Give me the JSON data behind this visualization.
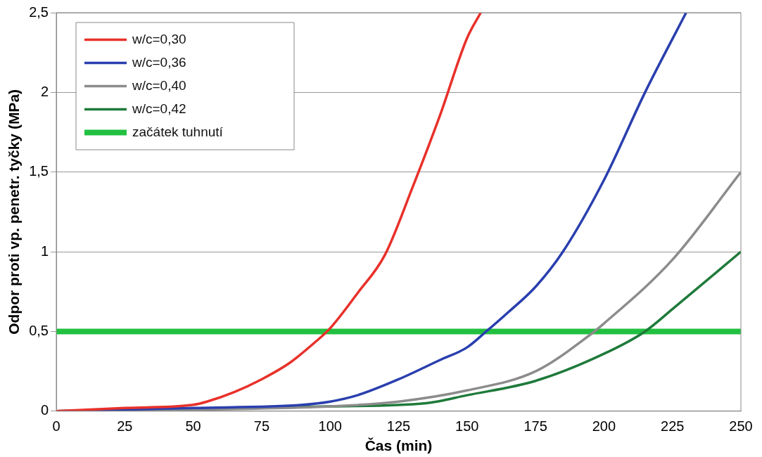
{
  "chart_data": {
    "type": "line",
    "xlabel": "Čas (min)",
    "ylabel": "Odpor proti vp. penetr. tyčky (MPa)",
    "series": [
      {
        "name": "w/c=0,30",
        "color": "#e8312a",
        "x": [
          0,
          25,
          50,
          55,
          65,
          75,
          85,
          95,
          100,
          110,
          120,
          130,
          140,
          150,
          155
        ],
        "values": [
          0,
          0.02,
          0.04,
          0.06,
          0.12,
          0.2,
          0.3,
          0.44,
          0.52,
          0.74,
          0.98,
          1.4,
          1.85,
          2.34,
          2.5
        ]
      },
      {
        "name": "w/c=0,36",
        "color": "#2a3fae",
        "x": [
          0,
          50,
          90,
          100,
          110,
          125,
          140,
          150,
          157,
          165,
          175,
          185,
          200,
          215,
          230
        ],
        "values": [
          0,
          0.02,
          0.04,
          0.06,
          0.1,
          0.2,
          0.32,
          0.4,
          0.5,
          0.62,
          0.78,
          1.0,
          1.45,
          2.0,
          2.5
        ]
      },
      {
        "name": "w/c=0,40",
        "color": "#8c8c8c",
        "x": [
          0,
          100,
          125,
          150,
          175,
          195,
          200,
          225,
          250
        ],
        "values": [
          0,
          0.03,
          0.06,
          0.13,
          0.25,
          0.48,
          0.55,
          0.95,
          1.5
        ]
      },
      {
        "name": "w/c=0,42",
        "color": "#1e7a3a",
        "x": [
          0,
          100,
          135,
          150,
          175,
          200,
          215,
          225,
          250
        ],
        "values": [
          0,
          0.03,
          0.05,
          0.1,
          0.19,
          0.36,
          0.5,
          0.64,
          1.0
        ]
      }
    ],
    "ref_lines": [
      {
        "axis": "y",
        "value": 0.5,
        "label": "začátek tuhnutí",
        "color": "#22c040"
      }
    ],
    "xlim": [
      0,
      250
    ],
    "xticks": [
      0,
      25,
      50,
      75,
      100,
      125,
      150,
      175,
      200,
      225,
      250
    ],
    "ylim": [
      0,
      2.5
    ],
    "yticks": [
      0,
      {
        "value": 0.5,
        "label": "0,5"
      },
      1,
      {
        "value": 1.5,
        "label": "1,5"
      },
      2,
      {
        "value": 2.5,
        "label": "2,5"
      }
    ],
    "grid": "y",
    "legend": "top left",
    "marker": "none",
    "line_style": "solid"
  }
}
